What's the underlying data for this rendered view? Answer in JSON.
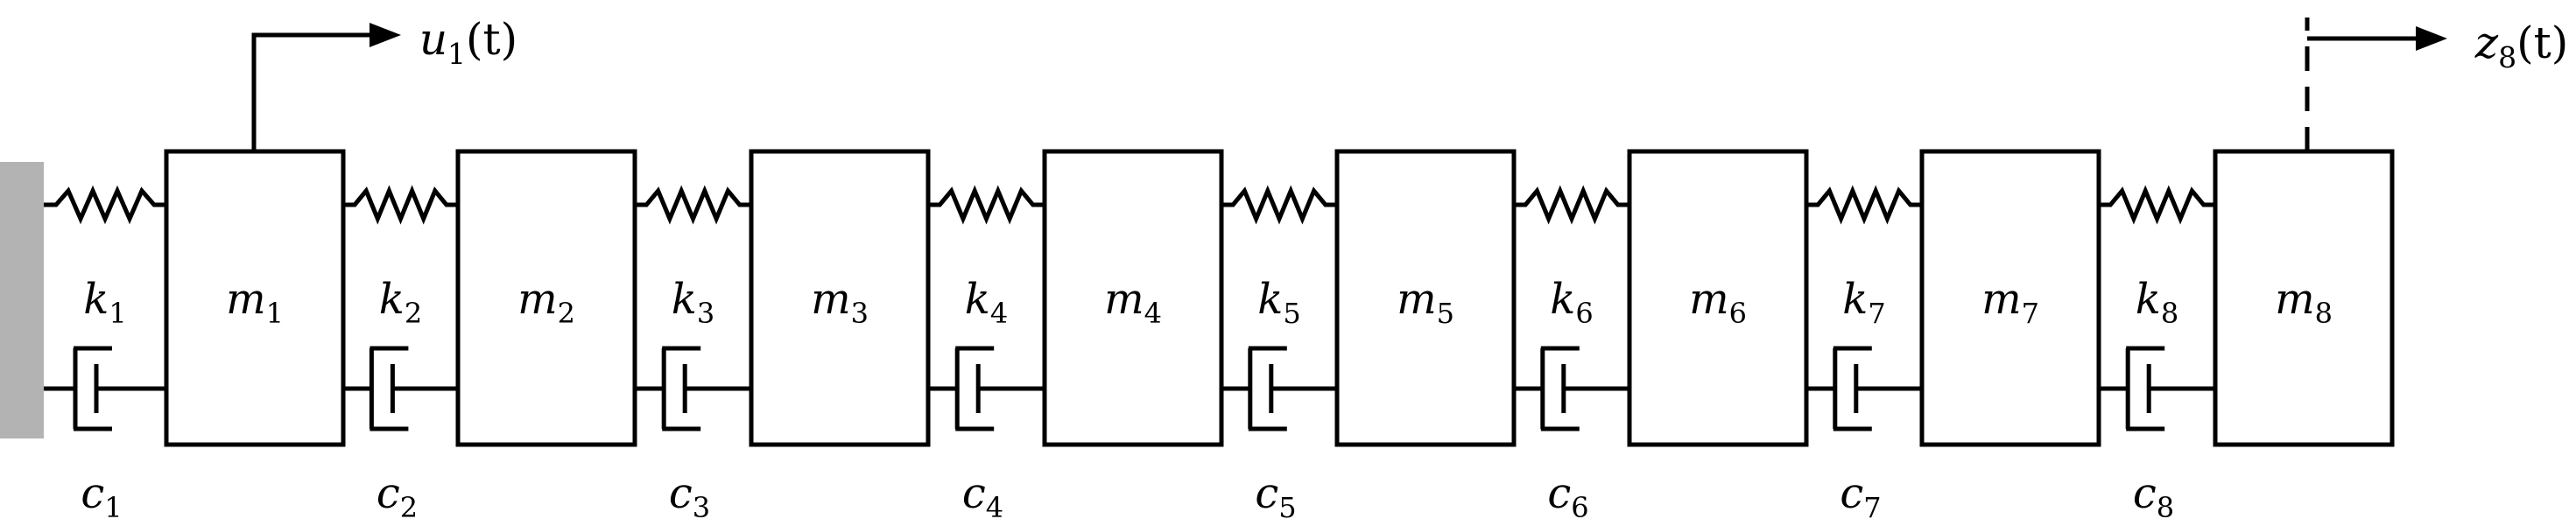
{
  "diagram": {
    "masses": [
      {
        "symbol": "m",
        "index": "1"
      },
      {
        "symbol": "m",
        "index": "2"
      },
      {
        "symbol": "m",
        "index": "3"
      },
      {
        "symbol": "m",
        "index": "4"
      },
      {
        "symbol": "m",
        "index": "5"
      },
      {
        "symbol": "m",
        "index": "6"
      },
      {
        "symbol": "m",
        "index": "7"
      },
      {
        "symbol": "m",
        "index": "8"
      }
    ],
    "springs": [
      {
        "symbol": "k",
        "index": "1"
      },
      {
        "symbol": "k",
        "index": "2"
      },
      {
        "symbol": "k",
        "index": "3"
      },
      {
        "symbol": "k",
        "index": "4"
      },
      {
        "symbol": "k",
        "index": "5"
      },
      {
        "symbol": "k",
        "index": "6"
      },
      {
        "symbol": "k",
        "index": "7"
      },
      {
        "symbol": "k",
        "index": "8"
      }
    ],
    "dampers": [
      {
        "symbol": "c",
        "index": "1"
      },
      {
        "symbol": "c",
        "index": "2"
      },
      {
        "symbol": "c",
        "index": "3"
      },
      {
        "symbol": "c",
        "index": "4"
      },
      {
        "symbol": "c",
        "index": "5"
      },
      {
        "symbol": "c",
        "index": "6"
      },
      {
        "symbol": "c",
        "index": "7"
      },
      {
        "symbol": "c",
        "index": "8"
      }
    ],
    "input": {
      "symbol": "u",
      "index": "1",
      "arg": "(t)"
    },
    "output": {
      "symbol": "z",
      "index": "8",
      "arg": "(t)"
    },
    "colors": {
      "wall": "#b3b3b3",
      "stroke": "#000000"
    }
  }
}
